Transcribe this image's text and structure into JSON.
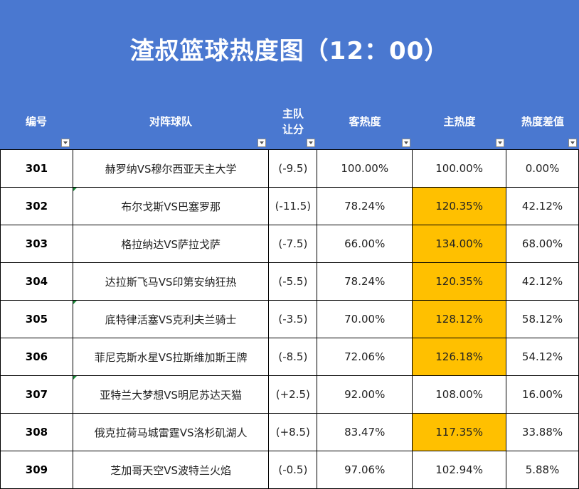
{
  "title": "渣叔篮球热度图（12：00）",
  "columns": {
    "id": "编号",
    "match": "对阵球队",
    "spread_line1": "主队",
    "spread_line2": "让分",
    "away": "客热度",
    "home": "主热度",
    "diff": "热度差值"
  },
  "rows": [
    {
      "id": "301",
      "match": "赫罗纳VS穆尔西亚天主大学",
      "spread": "(-9.5)",
      "away": "100.00%",
      "home": "100.00%",
      "diff": "0.00%"
    },
    {
      "id": "302",
      "match": "布尔戈斯VS巴塞罗那",
      "spread": "(-11.5)",
      "away": "78.24%",
      "home": "120.35%",
      "diff": "42.12%"
    },
    {
      "id": "303",
      "match": "格拉纳达VS萨拉戈萨",
      "spread": "(-7.5)",
      "away": "66.00%",
      "home": "134.00%",
      "diff": "68.00%"
    },
    {
      "id": "304",
      "match": "达拉斯飞马VS印第安纳狂热",
      "spread": "(-5.5)",
      "away": "78.24%",
      "home": "120.35%",
      "diff": "42.12%"
    },
    {
      "id": "305",
      "match": "底特律活塞VS克利夫兰骑士",
      "spread": "(-3.5)",
      "away": "70.00%",
      "home": "128.12%",
      "diff": "58.12%"
    },
    {
      "id": "306",
      "match": "菲尼克斯水星VS拉斯维加斯王牌",
      "spread": "(-8.5)",
      "away": "72.06%",
      "home": "126.18%",
      "diff": "54.12%"
    },
    {
      "id": "307",
      "match": "亚特兰大梦想VS明尼苏达天猫",
      "spread": "(+2.5)",
      "away": "92.00%",
      "home": "108.00%",
      "diff": "16.00%"
    },
    {
      "id": "308",
      "match": "俄克拉荷马城雷霆VS洛杉矶湖人",
      "spread": "(+8.5)",
      "away": "83.47%",
      "home": "117.35%",
      "diff": "33.88%"
    },
    {
      "id": "309",
      "match": "芝加哥天空VS波特兰火焰",
      "spread": "(-0.5)",
      "away": "97.06%",
      "home": "102.94%",
      "diff": "5.88%"
    }
  ],
  "colors": {
    "header_bg": "#4a78d0",
    "highlight": "#ffc000"
  }
}
